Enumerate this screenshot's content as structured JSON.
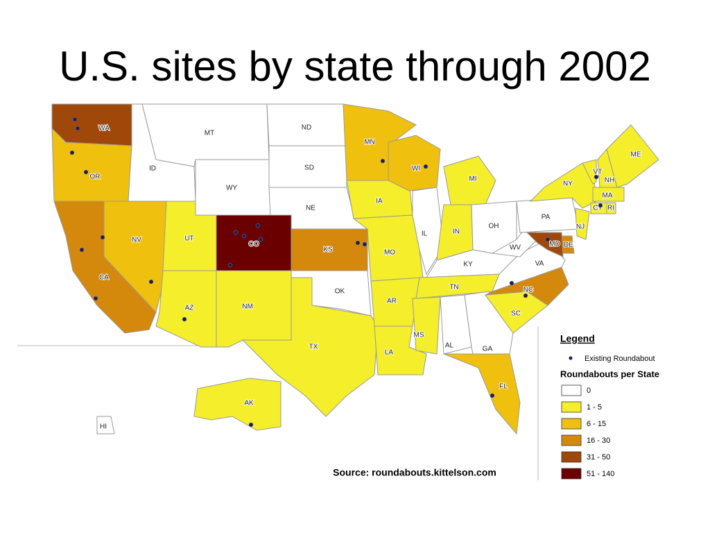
{
  "title": "U.S. sites by state through 2002",
  "states": [
    {
      "label": "WA",
      "class": 4
    },
    {
      "label": "OR",
      "class": 2
    },
    {
      "label": "CA",
      "class": 3
    },
    {
      "label": "NV",
      "class": 2
    },
    {
      "label": "ID",
      "class": 0
    },
    {
      "label": "MT",
      "class": 0
    },
    {
      "label": "WY",
      "class": 0
    },
    {
      "label": "UT",
      "class": 1
    },
    {
      "label": "CO",
      "class": 5
    },
    {
      "label": "AZ",
      "class": 1
    },
    {
      "label": "NM",
      "class": 1
    },
    {
      "label": "ND",
      "class": 0
    },
    {
      "label": "SD",
      "class": 0
    },
    {
      "label": "NE",
      "class": 0
    },
    {
      "label": "KS",
      "class": 3
    },
    {
      "label": "OK",
      "class": 0
    },
    {
      "label": "TX",
      "class": 1
    },
    {
      "label": "MN",
      "class": 2
    },
    {
      "label": "IA",
      "class": 1
    },
    {
      "label": "MO",
      "class": 1
    },
    {
      "label": "AR",
      "class": 1
    },
    {
      "label": "LA",
      "class": 1
    },
    {
      "label": "WI",
      "class": 2
    },
    {
      "label": "IL",
      "class": 0
    },
    {
      "label": "MI",
      "class": 1
    },
    {
      "label": "IN",
      "class": 1
    },
    {
      "label": "OH",
      "class": 0
    },
    {
      "label": "KY",
      "class": 0
    },
    {
      "label": "TN",
      "class": 1
    },
    {
      "label": "MS",
      "class": 1
    },
    {
      "label": "AL",
      "class": 0
    },
    {
      "label": "GA",
      "class": 0
    },
    {
      "label": "FL",
      "class": 2
    },
    {
      "label": "SC",
      "class": 1
    },
    {
      "label": "NC",
      "class": 3
    },
    {
      "label": "VA",
      "class": 0
    },
    {
      "label": "WV",
      "class": 0
    },
    {
      "label": "PA",
      "class": 0
    },
    {
      "label": "NY",
      "class": 1
    },
    {
      "label": "VT",
      "class": 1
    },
    {
      "label": "NH",
      "class": 1
    },
    {
      "label": "ME",
      "class": 1
    },
    {
      "label": "MA",
      "class": 1
    },
    {
      "label": "CT",
      "class": 1
    },
    {
      "label": "RI",
      "class": 1
    },
    {
      "label": "NJ",
      "class": 1
    },
    {
      "label": "DE",
      "class": 3
    },
    {
      "label": "MD",
      "class": 4
    },
    {
      "label": "AK",
      "class": 1
    },
    {
      "label": "HI",
      "class": 0
    }
  ],
  "legend": {
    "title": "Legend",
    "marker_label": "Existing Roundabout",
    "classes_title": "Roundabouts per State",
    "classes": [
      {
        "label": "0",
        "color": "#ffffff"
      },
      {
        "label": "1 - 5",
        "color": "#f5ee2a"
      },
      {
        "label": "6 - 15",
        "color": "#f0c00e"
      },
      {
        "label": "16 - 30",
        "color": "#d4880c"
      },
      {
        "label": "31 - 50",
        "color": "#a0480a"
      },
      {
        "label": "51 - 140",
        "color": "#6b0000"
      }
    ]
  },
  "source": "Source: roundabouts.kittelson.com"
}
